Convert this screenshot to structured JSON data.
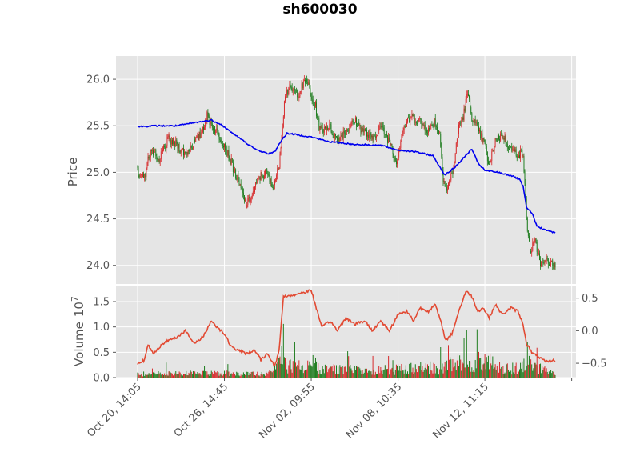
{
  "chart_data": [
    {
      "type": "candlestick",
      "title": "sh600030",
      "xlabel": "",
      "ylabel": "Price",
      "ylim": [
        23.8,
        26.25
      ],
      "yticks": [
        24.0,
        24.5,
        25.0,
        25.5,
        26.0
      ],
      "grid": true,
      "colors": {
        "up": "#d62728",
        "down": "#1a7a1a",
        "ma_line": "#0000ee",
        "background": "#e5e5e5"
      },
      "x_categories": [
        "Oct 20, 14:05",
        "Oct 26, 14:45",
        "Nov 02, 09:55",
        "Nov 08, 10:35",
        "Nov 12, 11:15"
      ],
      "x_tick_index": [
        0,
        100,
        200,
        300,
        400
      ],
      "n_points": 482,
      "close_anchors": [
        [
          0,
          25.0
        ],
        [
          8,
          24.95
        ],
        [
          15,
          25.25
        ],
        [
          25,
          25.15
        ],
        [
          35,
          25.35
        ],
        [
          45,
          25.3
        ],
        [
          55,
          25.2
        ],
        [
          72,
          25.4
        ],
        [
          80,
          25.6
        ],
        [
          90,
          25.45
        ],
        [
          100,
          25.3
        ],
        [
          108,
          25.1
        ],
        [
          118,
          24.85
        ],
        [
          125,
          24.65
        ],
        [
          132,
          24.75
        ],
        [
          140,
          24.95
        ],
        [
          148,
          25.0
        ],
        [
          155,
          24.85
        ],
        [
          160,
          24.95
        ],
        [
          163,
          25.1
        ],
        [
          170,
          25.85
        ],
        [
          175,
          25.9
        ],
        [
          185,
          25.85
        ],
        [
          195,
          26.0
        ],
        [
          200,
          25.8
        ],
        [
          205,
          25.7
        ],
        [
          210,
          25.45
        ],
        [
          220,
          25.5
        ],
        [
          230,
          25.35
        ],
        [
          240,
          25.45
        ],
        [
          250,
          25.55
        ],
        [
          260,
          25.45
        ],
        [
          270,
          25.35
        ],
        [
          280,
          25.5
        ],
        [
          292,
          25.3
        ],
        [
          298,
          25.1
        ],
        [
          305,
          25.45
        ],
        [
          315,
          25.6
        ],
        [
          325,
          25.55
        ],
        [
          335,
          25.45
        ],
        [
          342,
          25.55
        ],
        [
          348,
          25.4
        ],
        [
          352,
          24.95
        ],
        [
          356,
          24.8
        ],
        [
          364,
          25.05
        ],
        [
          370,
          25.5
        ],
        [
          375,
          25.6
        ],
        [
          380,
          25.85
        ],
        [
          385,
          25.6
        ],
        [
          392,
          25.45
        ],
        [
          400,
          25.3
        ],
        [
          405,
          25.05
        ],
        [
          412,
          25.35
        ],
        [
          420,
          25.4
        ],
        [
          430,
          25.25
        ],
        [
          438,
          25.2
        ],
        [
          444,
          25.2
        ],
        [
          448,
          24.5
        ],
        [
          452,
          24.15
        ],
        [
          458,
          24.25
        ],
        [
          465,
          24.0
        ],
        [
          472,
          24.05
        ],
        [
          481,
          23.98
        ]
      ],
      "ma_anchors": [
        [
          0,
          25.49
        ],
        [
          20,
          25.5
        ],
        [
          45,
          25.5
        ],
        [
          70,
          25.54
        ],
        [
          85,
          25.56
        ],
        [
          95,
          25.52
        ],
        [
          105,
          25.45
        ],
        [
          120,
          25.35
        ],
        [
          135,
          25.25
        ],
        [
          150,
          25.2
        ],
        [
          158,
          25.22
        ],
        [
          164,
          25.32
        ],
        [
          172,
          25.42
        ],
        [
          200,
          25.38
        ],
        [
          220,
          25.33
        ],
        [
          250,
          25.3
        ],
        [
          280,
          25.29
        ],
        [
          300,
          25.24
        ],
        [
          320,
          25.22
        ],
        [
          340,
          25.18
        ],
        [
          348,
          25.06
        ],
        [
          354,
          24.97
        ],
        [
          365,
          25.05
        ],
        [
          375,
          25.15
        ],
        [
          385,
          25.25
        ],
        [
          392,
          25.1
        ],
        [
          400,
          25.02
        ],
        [
          415,
          25.0
        ],
        [
          432,
          24.96
        ],
        [
          440,
          24.92
        ],
        [
          444,
          24.85
        ],
        [
          448,
          24.62
        ],
        [
          455,
          24.55
        ],
        [
          460,
          24.42
        ],
        [
          470,
          24.38
        ],
        [
          481,
          24.35
        ]
      ]
    },
    {
      "type": "bar",
      "ylabel": "Volume",
      "y_multiplier": "10",
      "y_multiplier_exp": "7",
      "ylim": [
        0,
        1.8
      ],
      "yticks": [
        0.0,
        0.5,
        1.0,
        1.5
      ],
      "grid": true,
      "colors": {
        "up": "#d62728",
        "down": "#1a7a1a",
        "line": "#e24a33"
      },
      "bar_level_anchors": [
        [
          0,
          0.12
        ],
        [
          100,
          0.13
        ],
        [
          150,
          0.1
        ],
        [
          162,
          0.35
        ],
        [
          166,
          0.55
        ],
        [
          175,
          0.35
        ],
        [
          200,
          0.3
        ],
        [
          260,
          0.2
        ],
        [
          330,
          0.3
        ],
        [
          355,
          0.3
        ],
        [
          370,
          0.45
        ],
        [
          400,
          0.5
        ],
        [
          420,
          0.25
        ],
        [
          444,
          0.3
        ],
        [
          448,
          0.8
        ],
        [
          452,
          0.35
        ],
        [
          481,
          0.12
        ]
      ],
      "secondary_axis": {
        "ylim": [
          -0.72,
          0.68
        ],
        "yticks": [
          0.5,
          0.0,
          -0.5
        ],
        "ytick_labels": [
          "0.5",
          "0.0",
          "−0.5"
        ],
        "line_anchors": [
          [
            0,
            -0.5
          ],
          [
            8,
            -0.45
          ],
          [
            12,
            -0.22
          ],
          [
            18,
            -0.35
          ],
          [
            25,
            -0.25
          ],
          [
            35,
            -0.15
          ],
          [
            45,
            -0.1
          ],
          [
            55,
            0.0
          ],
          [
            65,
            -0.2
          ],
          [
            75,
            -0.1
          ],
          [
            85,
            0.15
          ],
          [
            92,
            0.05
          ],
          [
            100,
            -0.05
          ],
          [
            108,
            -0.25
          ],
          [
            115,
            -0.3
          ],
          [
            125,
            -0.35
          ],
          [
            135,
            -0.3
          ],
          [
            142,
            -0.45
          ],
          [
            150,
            -0.35
          ],
          [
            158,
            -0.55
          ],
          [
            163,
            -0.3
          ],
          [
            168,
            0.52
          ],
          [
            180,
            0.55
          ],
          [
            195,
            0.6
          ],
          [
            200,
            0.62
          ],
          [
            208,
            0.25
          ],
          [
            212,
            0.05
          ],
          [
            222,
            0.15
          ],
          [
            230,
            0.0
          ],
          [
            240,
            0.2
          ],
          [
            250,
            0.1
          ],
          [
            262,
            0.15
          ],
          [
            270,
            0.0
          ],
          [
            280,
            0.15
          ],
          [
            290,
            0.0
          ],
          [
            300,
            0.25
          ],
          [
            310,
            0.3
          ],
          [
            318,
            0.15
          ],
          [
            325,
            0.35
          ],
          [
            335,
            0.3
          ],
          [
            343,
            0.4
          ],
          [
            350,
            0.1
          ],
          [
            355,
            -0.15
          ],
          [
            362,
            -0.05
          ],
          [
            370,
            0.3
          ],
          [
            378,
            0.6
          ],
          [
            384,
            0.55
          ],
          [
            392,
            0.3
          ],
          [
            398,
            0.35
          ],
          [
            405,
            0.2
          ],
          [
            412,
            0.4
          ],
          [
            420,
            0.25
          ],
          [
            430,
            0.35
          ],
          [
            438,
            0.3
          ],
          [
            444,
            0.1
          ],
          [
            448,
            -0.2
          ],
          [
            455,
            -0.35
          ],
          [
            462,
            -0.4
          ],
          [
            470,
            -0.48
          ],
          [
            481,
            -0.45
          ]
        ]
      }
    }
  ]
}
